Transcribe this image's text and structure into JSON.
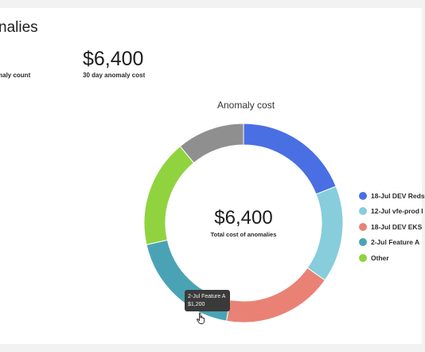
{
  "page": {
    "title": "nalies",
    "stats": [
      {
        "value": "",
        "label": "maly count"
      },
      {
        "value": "$6,400",
        "label": "30 day anomaly cost"
      }
    ]
  },
  "chart": {
    "title": "Anomaly cost",
    "center_value": "$6,400",
    "center_label": "Total cost of anomalies",
    "tooltip": {
      "name": "2-Jul Feature A",
      "value": "$1,200"
    },
    "legend": [
      {
        "label": "18-Jul DEV Reds",
        "color": "#4a6fe3"
      },
      {
        "label": "12-Jul vfe-prod I",
        "color": "#87cddb"
      },
      {
        "label": "18-Jul DEV EKS",
        "color": "#e98275"
      },
      {
        "label": "2-Jul Feature A",
        "color": "#4aa3b4"
      },
      {
        "label": "Other",
        "color": "#90d33f"
      }
    ]
  },
  "chart_data": {
    "type": "pie",
    "title": "Anomaly cost",
    "unit": "$",
    "total": 6400,
    "categories": [
      "18-Jul DEV Reds",
      "12-Jul vfe-prod I",
      "18-Jul DEV EKS",
      "2-Jul Feature A",
      "Other",
      ""
    ],
    "values": [
      1216,
      1008,
      1152,
      1200,
      1120,
      704
    ],
    "colors": [
      "#4a6fe3",
      "#87cddb",
      "#e98275",
      "#4aa3b4",
      "#90d33f",
      "#8f8f8f"
    ],
    "legend_position": "right"
  }
}
